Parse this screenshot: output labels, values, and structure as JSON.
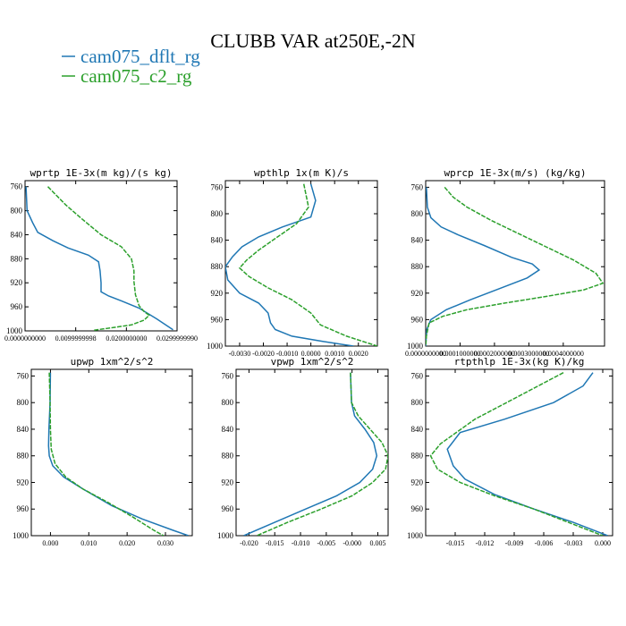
{
  "figure": {
    "title": "CLUBB VAR at250E,-2N",
    "legend": [
      {
        "name": "cam075_dflt_rg",
        "color": "#1f77b4"
      },
      {
        "name": "cam075_c2_rg",
        "color": "#2ca02c"
      }
    ]
  },
  "chart_data": [
    {
      "type": "line",
      "title": "wprtp  1E-3x(m kg)/(s kg)",
      "xlim": [
        0.0,
        0.029999999
      ],
      "ylim": [
        1000,
        750
      ],
      "xticks": [
        0.0,
        0.0099999998,
        0.02,
        0.029999999
      ],
      "xtick_labels": [
        "0.0000000000",
        "0.0099999998",
        "0.0200000000",
        "0.0299999990"
      ],
      "yticks": [
        760,
        800,
        840,
        880,
        920,
        960,
        1000
      ],
      "series": [
        {
          "name": "cam075_dflt_rg",
          "points": [
            [
              0.0002,
              760
            ],
            [
              0.0004,
              800
            ],
            [
              0.0015,
              820
            ],
            [
              0.0025,
              836
            ],
            [
              0.0055,
              850
            ],
            [
              0.0085,
              862
            ],
            [
              0.0125,
              874
            ],
            [
              0.0145,
              885
            ],
            [
              0.0148,
              900
            ],
            [
              0.015,
              920
            ],
            [
              0.015,
              935
            ],
            [
              0.0165,
              942
            ],
            [
              0.019,
              950
            ],
            [
              0.0225,
              962
            ],
            [
              0.026,
              980
            ],
            [
              0.0292,
              998
            ]
          ]
        },
        {
          "name": "cam075_c2_rg",
          "points": [
            [
              0.0045,
              760
            ],
            [
              0.008,
              790
            ],
            [
              0.011,
              812
            ],
            [
              0.015,
              840
            ],
            [
              0.019,
              860
            ],
            [
              0.021,
              880
            ],
            [
              0.0215,
              900
            ],
            [
              0.0215,
              918
            ],
            [
              0.0218,
              940
            ],
            [
              0.0225,
              958
            ],
            [
              0.0235,
              968
            ],
            [
              0.0245,
              974
            ],
            [
              0.0235,
              982
            ],
            [
              0.021,
              990
            ],
            [
              0.017,
              995
            ],
            [
              0.0135,
              999
            ]
          ]
        }
      ]
    },
    {
      "type": "line",
      "title": "wpthlp  1x(m K)/s",
      "xlim": [
        -0.0036,
        0.0028
      ],
      "ylim": [
        1000,
        750
      ],
      "xticks": [
        -0.003,
        -0.002,
        -0.001,
        0.0,
        0.001,
        0.002
      ],
      "xtick_labels": [
        "-0.0030",
        "-0.0020",
        "-0.0010",
        "0.0000",
        "0.0010",
        "0.0020"
      ],
      "yticks": [
        760,
        800,
        840,
        880,
        920,
        960,
        1000
      ],
      "series": [
        {
          "name": "cam075_dflt_rg",
          "points": [
            [
              0.0,
              755
            ],
            [
              0.0002,
              780
            ],
            [
              0.0,
              805
            ],
            [
              -0.0012,
              820
            ],
            [
              -0.0022,
              835
            ],
            [
              -0.0029,
              850
            ],
            [
              -0.0033,
              865
            ],
            [
              -0.0036,
              880
            ],
            [
              -0.0035,
              900
            ],
            [
              -0.003,
              920
            ],
            [
              -0.0022,
              935
            ],
            [
              -0.0018,
              950
            ],
            [
              -0.0017,
              965
            ],
            [
              -0.0015,
              975
            ],
            [
              -0.0008,
              985
            ],
            [
              0.0005,
              993
            ],
            [
              0.0018,
              1000
            ]
          ]
        },
        {
          "name": "cam075_c2_rg",
          "points": [
            [
              -0.0003,
              755
            ],
            [
              -0.0001,
              790
            ],
            [
              -0.0006,
              815
            ],
            [
              -0.0014,
              835
            ],
            [
              -0.0022,
              855
            ],
            [
              -0.0027,
              870
            ],
            [
              -0.003,
              882
            ],
            [
              -0.0026,
              895
            ],
            [
              -0.0018,
              912
            ],
            [
              -0.0008,
              930
            ],
            [
              0.0,
              950
            ],
            [
              0.0004,
              968
            ],
            [
              0.0015,
              985
            ],
            [
              0.0028,
              1000
            ]
          ]
        }
      ]
    },
    {
      "type": "line",
      "title": "wprcp  1E-3x(m/s) (kg/kg)",
      "xlim": [
        0.0,
        0.00052
      ],
      "ylim": [
        1000,
        750
      ],
      "xticks": [
        0.0,
        0.0001,
        0.0002,
        0.0003,
        0.0004
      ],
      "xtick_labels": [
        "0.0000000000",
        "0.0001000000",
        "0.0002000000",
        "0.0003000000",
        "0.0004000000"
      ],
      "yticks": [
        760,
        800,
        840,
        880,
        920,
        960,
        1000
      ],
      "series": [
        {
          "name": "cam075_dflt_rg",
          "points": [
            [
              2e-06,
              760
            ],
            [
              5e-06,
              790
            ],
            [
              1.5e-05,
              806
            ],
            [
              4.5e-05,
              820
            ],
            [
              9.5e-05,
              832
            ],
            [
              0.00017,
              848
            ],
            [
              0.00025,
              866
            ],
            [
              0.00031,
              876
            ],
            [
              0.00033,
              885
            ],
            [
              0.000295,
              897
            ],
            [
              0.00022,
              912
            ],
            [
              0.00013,
              930
            ],
            [
              6e-05,
              945
            ],
            [
              1.5e-05,
              960
            ],
            [
              3e-06,
              975
            ],
            [
              0.0,
              1000
            ]
          ]
        },
        {
          "name": "cam075_c2_rg",
          "points": [
            [
              5.5e-05,
              760
            ],
            [
              8e-05,
              775
            ],
            [
              0.00012,
              790
            ],
            [
              0.00019,
              810
            ],
            [
              0.00027,
              830
            ],
            [
              0.00035,
              850
            ],
            [
              0.00043,
              870
            ],
            [
              0.000495,
              890
            ],
            [
              0.000515,
              905
            ],
            [
              0.00046,
              915
            ],
            [
              0.00035,
              925
            ],
            [
              0.00023,
              935
            ],
            [
              0.00012,
              945
            ],
            [
              5e-05,
              955
            ],
            [
              1e-05,
              965
            ],
            [
              2e-06,
              985
            ],
            [
              0.0,
              1000
            ]
          ]
        }
      ]
    },
    {
      "type": "line",
      "title": "upwp  1xm^2/s^2",
      "xlim": [
        -0.005,
        0.037
      ],
      "ylim": [
        1000,
        750
      ],
      "xticks": [
        0.0,
        0.01,
        0.02,
        0.03
      ],
      "xtick_labels": [
        "0.000",
        "0.010",
        "0.020",
        "0.030"
      ],
      "yticks": [
        760,
        800,
        840,
        880,
        920,
        960,
        1000
      ],
      "series": [
        {
          "name": "cam075_dflt_rg",
          "points": [
            [
              0.0,
              755
            ],
            [
              -0.0001,
              800
            ],
            [
              -0.0004,
              840
            ],
            [
              -0.0005,
              865
            ],
            [
              -0.0003,
              880
            ],
            [
              0.0006,
              895
            ],
            [
              0.0035,
              912
            ],
            [
              0.0085,
              930
            ],
            [
              0.016,
              955
            ],
            [
              0.024,
              975
            ],
            [
              0.032,
              992
            ],
            [
              0.036,
              1000
            ]
          ]
        },
        {
          "name": "cam075_c2_rg",
          "points": [
            [
              -0.0003,
              755
            ],
            [
              -0.0001,
              800
            ],
            [
              0.0,
              840
            ],
            [
              0.0002,
              870
            ],
            [
              0.0012,
              892
            ],
            [
              0.004,
              912
            ],
            [
              0.0085,
              930
            ],
            [
              0.015,
              950
            ],
            [
              0.0215,
              972
            ],
            [
              0.027,
              992
            ],
            [
              0.0295,
              1000
            ]
          ]
        }
      ]
    },
    {
      "type": "line",
      "title": "vpwp  1xm^2/s^2",
      "xlim": [
        -0.0225,
        0.007
      ],
      "ylim": [
        1000,
        750
      ],
      "xticks": [
        -0.02,
        -0.015,
        -0.01,
        -0.005,
        -0.0,
        0.005
      ],
      "xtick_labels": [
        "-0.020",
        "-0.015",
        "-0.010",
        "-0.005",
        "-0.000",
        "0.005"
      ],
      "yticks": [
        760,
        800,
        840,
        880,
        920,
        960,
        1000
      ],
      "series": [
        {
          "name": "cam075_dflt_rg",
          "points": [
            [
              -0.0003,
              755
            ],
            [
              -0.0001,
              800
            ],
            [
              0.0005,
              820
            ],
            [
              0.0025,
              840
            ],
            [
              0.0042,
              860
            ],
            [
              0.0048,
              880
            ],
            [
              0.004,
              900
            ],
            [
              0.0015,
              920
            ],
            [
              -0.003,
              940
            ],
            [
              -0.009,
              960
            ],
            [
              -0.015,
              980
            ],
            [
              -0.021,
              1000
            ]
          ]
        },
        {
          "name": "cam075_c2_rg",
          "points": [
            [
              -0.0003,
              755
            ],
            [
              -0.0001,
              800
            ],
            [
              0.0012,
              820
            ],
            [
              0.0035,
              840
            ],
            [
              0.0058,
              860
            ],
            [
              0.007,
              880
            ],
            [
              0.0065,
              900
            ],
            [
              0.004,
              920
            ],
            [
              0.0,
              940
            ],
            [
              -0.006,
              960
            ],
            [
              -0.0125,
              980
            ],
            [
              -0.0185,
              1000
            ]
          ]
        }
      ]
    },
    {
      "type": "line",
      "title": "rtpthlp  1E-3x(kg K)/kg",
      "xlim": [
        -0.018,
        0.001
      ],
      "ylim": [
        1000,
        750
      ],
      "xticks": [
        -0.015,
        -0.012,
        -0.009,
        -0.006,
        -0.003,
        0.0
      ],
      "xtick_labels": [
        "-0.015",
        "-0.012",
        "-0.009",
        "-0.006",
        "-0.003",
        "0.000"
      ],
      "yticks": [
        760,
        800,
        840,
        880,
        920,
        960,
        1000
      ],
      "series": [
        {
          "name": "cam075_dflt_rg",
          "points": [
            [
              -0.001,
              755
            ],
            [
              -0.002,
              775
            ],
            [
              -0.005,
              800
            ],
            [
              -0.01,
              825
            ],
            [
              -0.0145,
              845
            ],
            [
              -0.0158,
              870
            ],
            [
              -0.0152,
              895
            ],
            [
              -0.014,
              915
            ],
            [
              -0.011,
              938
            ],
            [
              -0.007,
              960
            ],
            [
              -0.003,
              980
            ],
            [
              0.0005,
              1000
            ]
          ]
        },
        {
          "name": "cam075_c2_rg",
          "points": [
            [
              -0.004,
              755
            ],
            [
              -0.0085,
              790
            ],
            [
              -0.013,
              825
            ],
            [
              -0.0165,
              862
            ],
            [
              -0.0175,
              880
            ],
            [
              -0.0168,
              900
            ],
            [
              -0.0145,
              920
            ],
            [
              -0.011,
              940
            ],
            [
              -0.007,
              960
            ],
            [
              -0.0035,
              980
            ],
            [
              0.0,
              1000
            ]
          ]
        }
      ]
    }
  ]
}
